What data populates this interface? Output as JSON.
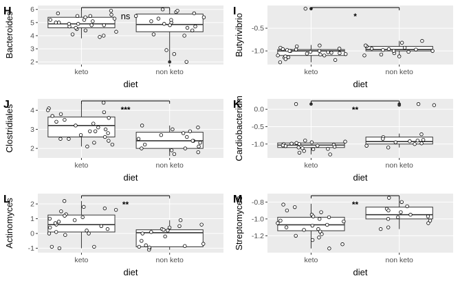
{
  "chart_data": [
    {
      "type": "box",
      "panel_letter": "H",
      "xlabel": "diet",
      "ylabel": "Bacteroides",
      "categories": [
        "keto",
        "non keto"
      ],
      "ylim": [
        1.8,
        6.3
      ],
      "yticks": [
        "2",
        "3",
        "4",
        "5",
        "6"
      ],
      "grid": true,
      "significance": "ns",
      "boxes": [
        {
          "category": "keto",
          "q1": 4.6,
          "median": 4.9,
          "q3": 5.4,
          "whisker_low": 3.8,
          "whisker_high": 6.0,
          "outliers": []
        },
        {
          "category": "non keto",
          "q1": 4.3,
          "median": 4.85,
          "q3": 5.65,
          "whisker_low": 2.0,
          "whisker_high": 6.0,
          "outliers": [
            2.0
          ]
        }
      ],
      "points": [
        {
          "category": "keto",
          "values": [
            5.9,
            5.2,
            4.4,
            4.1,
            4.9,
            5.5,
            5.7,
            4.7,
            5.2,
            5.3,
            4.8,
            5.0,
            4.3,
            4.0,
            5.5,
            5.6,
            4.5,
            4.8,
            4.9,
            3.9,
            5.4,
            5.1,
            4.6,
            5.0
          ]
        },
        {
          "category": "non keto",
          "values": [
            2.0,
            2.6,
            2.9,
            4.1,
            4.4,
            4.6,
            4.8,
            5.0,
            5.2,
            5.5,
            5.8,
            5.9,
            6.0,
            5.7,
            5.3,
            4.9,
            5.1,
            5.4,
            4.0,
            4.7
          ]
        }
      ]
    },
    {
      "type": "box",
      "panel_letter": "I",
      "xlabel": "diet",
      "ylabel": "Butyrivibrio",
      "categories": [
        "keto",
        "non keto"
      ],
      "ylim": [
        -1.3,
        0.0
      ],
      "yticks": [
        "-0.5",
        "-1.0"
      ],
      "grid": true,
      "significance": "*",
      "boxes": [
        {
          "category": "keto",
          "q1": -1.1,
          "median": -1.0,
          "q3": -0.97,
          "whisker_low": -1.25,
          "whisker_high": -0.87,
          "outliers": [
            -0.07
          ]
        },
        {
          "category": "non keto",
          "q1": -1.0,
          "median": -0.97,
          "q3": -0.9,
          "whisker_low": -1.12,
          "whisker_high": -0.78,
          "outliers": []
        }
      ],
      "points": [
        {
          "category": "keto",
          "values": [
            -0.07,
            -0.9,
            -0.95,
            -1.0,
            -1.05,
            -1.1,
            -1.15,
            -1.2,
            -1.25,
            -0.97,
            -1.03,
            -1.08,
            -1.12,
            -0.93,
            -1.0,
            -1.02,
            -1.06,
            -0.98,
            -1.1,
            -1.18,
            -0.88,
            -1.04,
            -1.0,
            -1.14,
            -0.96,
            -1.07
          ]
        },
        {
          "category": "non keto",
          "values": [
            -0.78,
            -0.82,
            -0.9,
            -0.95,
            -0.98,
            -1.0,
            -1.05,
            -1.1,
            -1.12,
            -0.93,
            -0.97,
            -1.02,
            -0.88,
            -1.0,
            -0.96,
            -1.08
          ]
        }
      ]
    },
    {
      "type": "box",
      "panel_letter": "J",
      "xlabel": "diet",
      "ylabel": "Clostridiales",
      "categories": [
        "keto",
        "non keto"
      ],
      "ylim": [
        1.5,
        4.6
      ],
      "yticks": [
        "2",
        "3",
        "4"
      ],
      "grid": true,
      "significance": "***",
      "boxes": [
        {
          "category": "keto",
          "q1": 2.6,
          "median": 3.2,
          "q3": 3.65,
          "whisker_low": 2.1,
          "whisker_high": 4.4,
          "outliers": []
        },
        {
          "category": "non keto",
          "q1": 2.0,
          "median": 2.4,
          "q3": 2.85,
          "whisker_low": 1.6,
          "whisker_high": 3.2,
          "outliers": []
        }
      ],
      "points": [
        {
          "category": "keto",
          "values": [
            4.4,
            4.1,
            4.0,
            3.9,
            3.7,
            3.5,
            3.4,
            3.3,
            3.2,
            3.1,
            3.0,
            2.9,
            2.8,
            2.7,
            2.6,
            2.5,
            2.4,
            2.3,
            2.2,
            2.1,
            3.6,
            3.8,
            2.5,
            2.9
          ]
        },
        {
          "category": "non keto",
          "values": [
            3.2,
            3.1,
            3.0,
            2.9,
            2.7,
            2.6,
            2.5,
            2.4,
            2.3,
            2.2,
            2.1,
            2.0,
            1.9,
            1.8,
            1.7,
            2.8,
            2.4,
            2.0
          ]
        }
      ]
    },
    {
      "type": "box",
      "panel_letter": "K",
      "xlabel": "diet",
      "ylabel": "Cardiobacterium",
      "categories": [
        "keto",
        "non keto"
      ],
      "ylim": [
        -1.4,
        0.3
      ],
      "yticks": [
        "0.0",
        "-0.5",
        "-1.0"
      ],
      "grid": true,
      "significance": "**",
      "boxes": [
        {
          "category": "keto",
          "q1": -1.1,
          "median": -1.03,
          "q3": -0.97,
          "whisker_low": -1.3,
          "whisker_high": -0.9,
          "outliers": [
            0.15
          ]
        },
        {
          "category": "non keto",
          "q1": -1.0,
          "median": -0.93,
          "q3": -0.8,
          "whisker_low": -1.1,
          "whisker_high": -0.7,
          "outliers": [
            0.15,
            0.12
          ]
        }
      ],
      "points": [
        {
          "category": "keto",
          "values": [
            0.15,
            -0.9,
            -0.95,
            -1.0,
            -1.05,
            -1.1,
            -1.15,
            -1.2,
            -1.25,
            -1.3,
            -0.97,
            -1.02,
            -1.08,
            -0.93,
            -1.12,
            -1.0,
            -1.06,
            -0.99,
            -1.14,
            -1.04
          ]
        },
        {
          "category": "non keto",
          "values": [
            0.15,
            0.12,
            -0.72,
            -0.8,
            -0.85,
            -0.9,
            -0.95,
            -1.0,
            -1.05,
            -1.1,
            -0.88,
            -0.92,
            -0.98
          ]
        }
      ]
    },
    {
      "type": "box",
      "panel_letter": "L",
      "xlabel": "diet",
      "ylabel": "Actinomyces",
      "categories": [
        "keto",
        "non keto"
      ],
      "ylim": [
        -1.3,
        2.7
      ],
      "yticks": [
        "2",
        "1",
        "0",
        "-1"
      ],
      "grid": true,
      "significance": "**",
      "boxes": [
        {
          "category": "keto",
          "q1": 0.1,
          "median": 0.6,
          "q3": 1.25,
          "whisker_low": -1.0,
          "whisker_high": 2.2,
          "outliers": []
        },
        {
          "category": "non keto",
          "q1": -0.9,
          "median": 0.05,
          "q3": 0.25,
          "whisker_low": -1.1,
          "whisker_high": 0.9,
          "outliers": []
        }
      ],
      "points": [
        {
          "category": "keto",
          "values": [
            2.2,
            1.8,
            1.6,
            1.5,
            1.3,
            1.2,
            1.0,
            0.9,
            0.8,
            0.6,
            0.5,
            0.4,
            0.2,
            0.1,
            0.0,
            -0.1,
            -0.9,
            -1.0,
            1.7,
            1.1,
            0.3,
            0.7,
            0.0,
            -0.9
          ]
        },
        {
          "category": "non keto",
          "values": [
            0.9,
            0.6,
            0.4,
            0.3,
            0.2,
            0.1,
            0.0,
            -0.2,
            -0.5,
            -0.8,
            -0.9,
            -1.0,
            -1.1,
            0.5,
            -0.7,
            -0.95,
            0.25,
            -0.85
          ]
        }
      ]
    },
    {
      "type": "box",
      "panel_letter": "M",
      "xlabel": "diet",
      "ylabel": "Streptomyces",
      "categories": [
        "keto",
        "non keto"
      ],
      "ylim": [
        -1.4,
        -0.7
      ],
      "yticks": [
        "-0.8",
        "-1.0",
        "-1.2"
      ],
      "grid": true,
      "significance": "**",
      "boxes": [
        {
          "category": "keto",
          "q1": -1.14,
          "median": -1.07,
          "q3": -0.98,
          "whisker_low": -1.35,
          "whisker_high": -0.82,
          "outliers": []
        },
        {
          "category": "non keto",
          "q1": -1.0,
          "median": -0.95,
          "q3": -0.86,
          "whisker_low": -1.12,
          "whisker_high": -0.75,
          "outliers": []
        }
      ],
      "points": [
        {
          "category": "keto",
          "values": [
            -0.83,
            -0.86,
            -0.9,
            -0.95,
            -0.98,
            -1.0,
            -1.02,
            -1.05,
            -1.08,
            -1.1,
            -1.12,
            -1.15,
            -1.2,
            -1.25,
            -1.3,
            -1.35,
            -0.92,
            -1.03,
            -1.07,
            -1.18,
            -1.22,
            -0.97,
            -1.13
          ]
        },
        {
          "category": "non keto",
          "values": [
            -0.75,
            -0.8,
            -0.85,
            -0.88,
            -0.92,
            -0.95,
            -0.98,
            -1.0,
            -1.05,
            -1.1,
            -1.12,
            -0.9,
            -0.97,
            -1.02
          ]
        }
      ]
    }
  ]
}
